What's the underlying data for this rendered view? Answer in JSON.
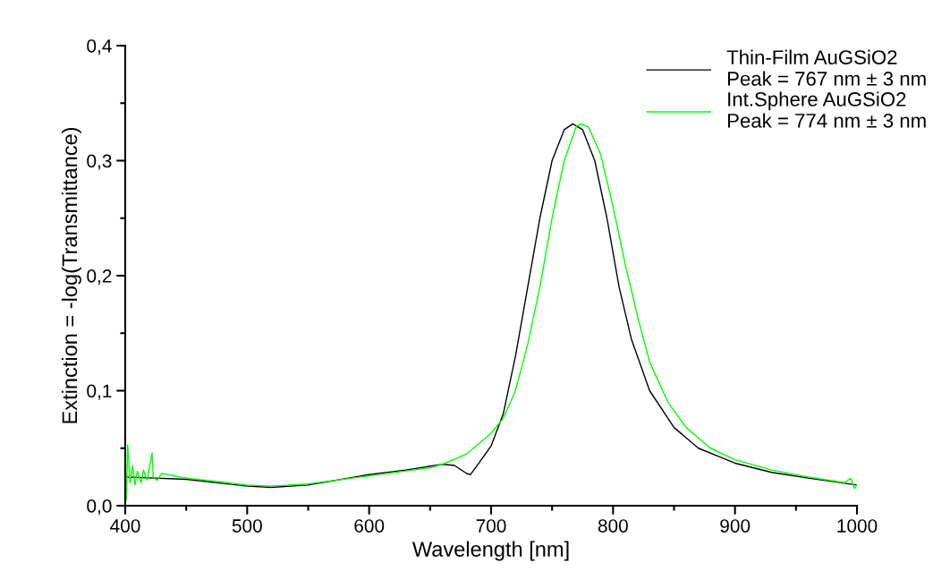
{
  "chart_data": {
    "type": "line",
    "xlabel": "Wavelength [nm]",
    "ylabel": "Extinction = -log(Transmittance)",
    "xlim": [
      400,
      1000
    ],
    "ylim": [
      0,
      0.4
    ],
    "xticks": [
      400,
      500,
      600,
      700,
      800,
      900,
      1000
    ],
    "yticks": [
      {
        "value": 0,
        "label": "0,0"
      },
      {
        "value": 0.1,
        "label": "0,1"
      },
      {
        "value": 0.2,
        "label": "0,2"
      },
      {
        "value": 0.3,
        "label": "0,3"
      },
      {
        "value": 0.4,
        "label": "0,4"
      }
    ],
    "grid": false,
    "legend": "top right",
    "marker": "none",
    "line_style": "solid",
    "series": [
      {
        "name": "Thin-Film AuGSiO2\nPeak = 767 nm ± 3 nm",
        "color": "#000000",
        "x": [
          400,
          450,
          500,
          520,
          550,
          600,
          630,
          660,
          670,
          680,
          683,
          690,
          700,
          710,
          720,
          730,
          740,
          750,
          760,
          767,
          775,
          785,
          795,
          805,
          815,
          830,
          850,
          870,
          900,
          930,
          960,
          1000
        ],
        "values": [
          0.025,
          0.023,
          0.017,
          0.016,
          0.018,
          0.027,
          0.031,
          0.036,
          0.035,
          0.028,
          0.027,
          0.037,
          0.052,
          0.08,
          0.13,
          0.19,
          0.25,
          0.3,
          0.327,
          0.332,
          0.327,
          0.3,
          0.25,
          0.19,
          0.145,
          0.1,
          0.068,
          0.05,
          0.037,
          0.029,
          0.024,
          0.018
        ]
      },
      {
        "name": "Int.Sphere AuGSiO2\nPeak = 774 nm ± 3 nm",
        "color": "#00ff00",
        "x": [
          400,
          401,
          402,
          404,
          406,
          408,
          410,
          413,
          415,
          418,
          422,
          423,
          426,
          430,
          450,
          500,
          520,
          550,
          600,
          650,
          660,
          680,
          700,
          710,
          720,
          730,
          740,
          750,
          760,
          770,
          774,
          780,
          790,
          800,
          810,
          820,
          830,
          845,
          860,
          880,
          900,
          930,
          960,
          990,
          995,
          998,
          1000
        ],
        "values": [
          0.025,
          0.005,
          0.053,
          0.02,
          0.035,
          0.018,
          0.03,
          0.02,
          0.031,
          0.022,
          0.046,
          0.025,
          0.022,
          0.028,
          0.024,
          0.018,
          0.017,
          0.019,
          0.026,
          0.033,
          0.036,
          0.045,
          0.063,
          0.076,
          0.1,
          0.14,
          0.19,
          0.25,
          0.3,
          0.33,
          0.332,
          0.329,
          0.305,
          0.26,
          0.21,
          0.165,
          0.125,
          0.09,
          0.068,
          0.05,
          0.04,
          0.031,
          0.025,
          0.02,
          0.024,
          0.015,
          0.018
        ]
      }
    ]
  }
}
